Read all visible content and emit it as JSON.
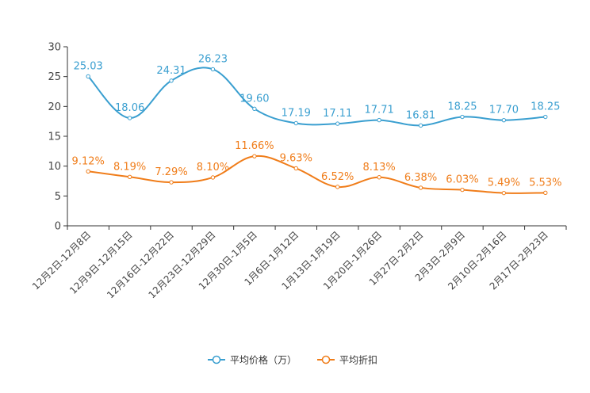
{
  "chart_data": {
    "type": "line",
    "title": "",
    "xlabel": "",
    "ylabel": "",
    "ylim": [
      0,
      30
    ],
    "yticks": [
      0,
      5,
      10,
      15,
      20,
      25,
      30
    ],
    "categories": [
      "12月2日-12月8日",
      "12月9日-12月15日",
      "12月16日-12月22日",
      "12月23日-12月29日",
      "12月30日-1月5日",
      "1月6日-1月12日",
      "1月13日-1月19日",
      "1月20日-1月26日",
      "1月27日-2月2日",
      "2月3日-2月9日",
      "2月10日-2月16日",
      "2月17日-2月23日"
    ],
    "series": [
      {
        "name": "平均价格（万）",
        "color": "#3a9fd0",
        "values": [
          25.03,
          18.06,
          24.31,
          26.23,
          19.6,
          17.19,
          17.11,
          17.71,
          16.81,
          18.25,
          17.7,
          18.25
        ],
        "labels": [
          "25.03",
          "18.06",
          "24.31",
          "26.23",
          "19.60",
          "17.19",
          "17.11",
          "17.71",
          "16.81",
          "18.25",
          "17.70",
          "18.25"
        ]
      },
      {
        "name": "平均折扣",
        "color": "#f07d1a",
        "values": [
          9.12,
          8.19,
          7.29,
          8.1,
          11.66,
          9.63,
          6.52,
          8.13,
          6.38,
          6.03,
          5.49,
          5.53
        ],
        "labels": [
          "9.12%",
          "8.19%",
          "7.29%",
          "8.10%",
          "11.66%",
          "9.63%",
          "6.52%",
          "8.13%",
          "6.38%",
          "6.03%",
          "5.49%",
          "5.53%"
        ]
      }
    ],
    "legend_position": "bottom-center"
  }
}
